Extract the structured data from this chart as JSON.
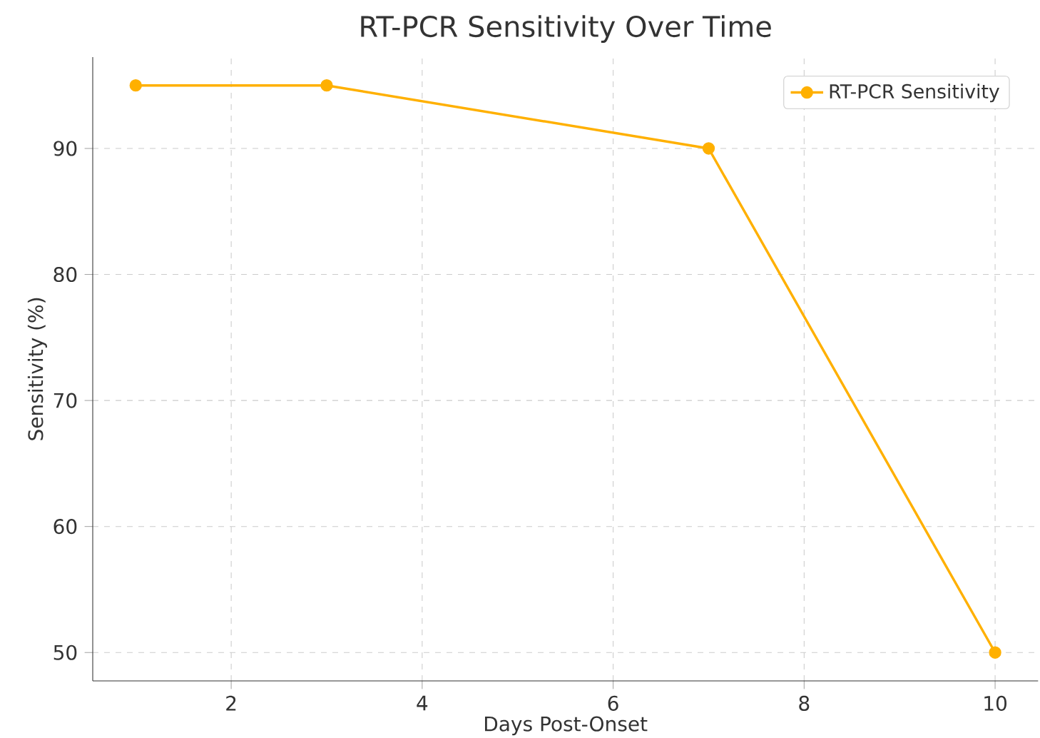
{
  "chart_data": {
    "type": "line",
    "title": "RT-PCR Sensitivity Over Time",
    "xlabel": "Days Post-Onset",
    "ylabel": "Sensitivity (%)",
    "x": [
      1,
      3,
      7,
      10
    ],
    "series": [
      {
        "name": "RT-PCR Sensitivity",
        "color": "#ffb000",
        "values": [
          95,
          95,
          90,
          50
        ]
      }
    ],
    "xlim": [
      0.55,
      10.45
    ],
    "ylim": [
      47.75,
      97.25
    ],
    "xticks": [
      2,
      4,
      6,
      8,
      10
    ],
    "yticks": [
      50,
      60,
      70,
      80,
      90
    ],
    "grid": true,
    "legend": "top right",
    "marker": "circle",
    "line_style": "solid"
  }
}
